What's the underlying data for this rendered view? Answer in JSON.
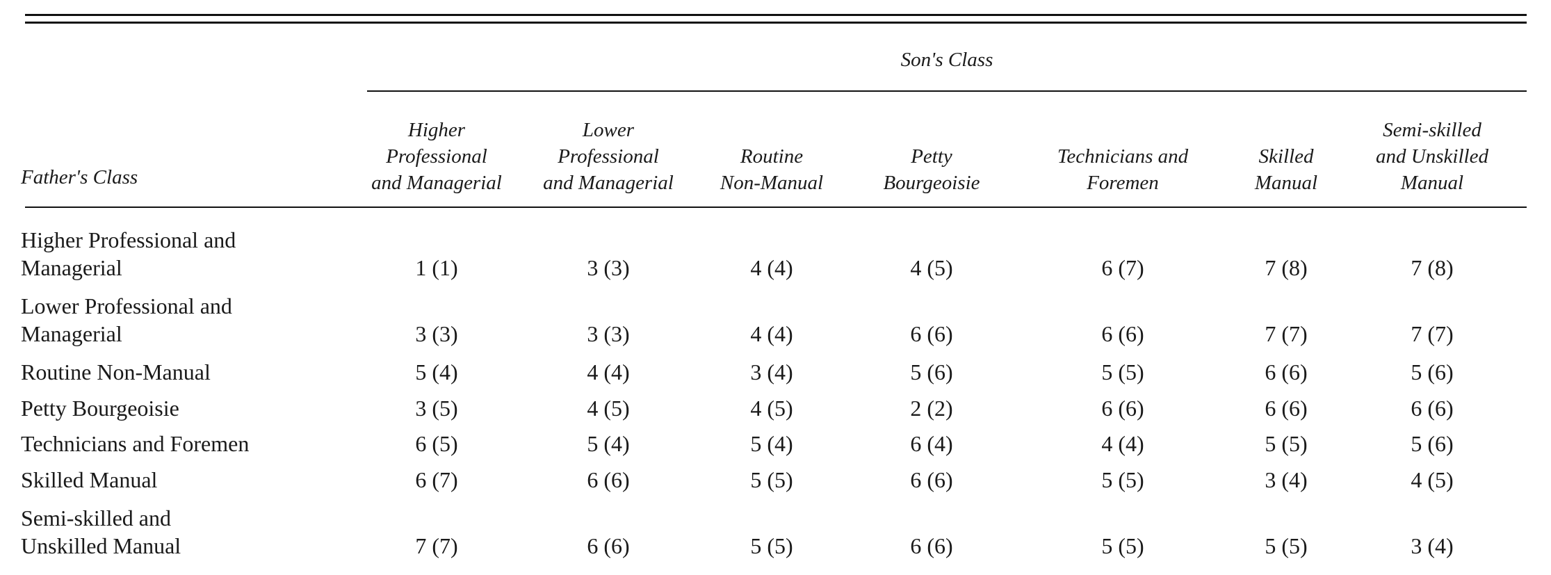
{
  "table": {
    "spanner": "Son's Class",
    "row_header": "Father's Class",
    "columns": [
      "Higher\nProfessional\nand Managerial",
      "Lower\nProfessional\nand Managerial",
      "Routine\nNon-Manual",
      "Petty\nBourgeoisie",
      "Technicians and\nForemen",
      "Skilled\nManual",
      "Semi-skilled\nand Unskilled\nManual"
    ],
    "rows": [
      {
        "label": "Higher Professional and\nManagerial",
        "cells": [
          "1 (1)",
          "3 (3)",
          "4 (4)",
          "4 (5)",
          "6 (7)",
          "7 (8)",
          "7 (8)"
        ]
      },
      {
        "label": "Lower Professional and\nManagerial",
        "cells": [
          "3 (3)",
          "3 (3)",
          "4 (4)",
          "6 (6)",
          "6 (6)",
          "7 (7)",
          "7 (7)"
        ]
      },
      {
        "label": "Routine Non-Manual",
        "cells": [
          "5 (4)",
          "4 (4)",
          "3 (4)",
          "5 (6)",
          "5 (5)",
          "6 (6)",
          "5 (6)"
        ]
      },
      {
        "label": "Petty Bourgeoisie",
        "cells": [
          "3 (5)",
          "4 (5)",
          "4 (5)",
          "2 (2)",
          "6 (6)",
          "6 (6)",
          "6 (6)"
        ]
      },
      {
        "label": "Technicians and Foremen",
        "cells": [
          "6 (5)",
          "5 (4)",
          "5 (4)",
          "6 (4)",
          "4 (4)",
          "5 (5)",
          "5 (6)"
        ]
      },
      {
        "label": "Skilled Manual",
        "cells": [
          "6 (7)",
          "6 (6)",
          "5 (5)",
          "6 (6)",
          "5 (5)",
          "3 (4)",
          "4 (5)"
        ]
      },
      {
        "label": "Semi-skilled and\nUnskilled Manual",
        "cells": [
          "7 (7)",
          "6 (6)",
          "5 (5)",
          "6 (6)",
          "5 (5)",
          "5 (5)",
          "3 (4)"
        ]
      }
    ]
  }
}
